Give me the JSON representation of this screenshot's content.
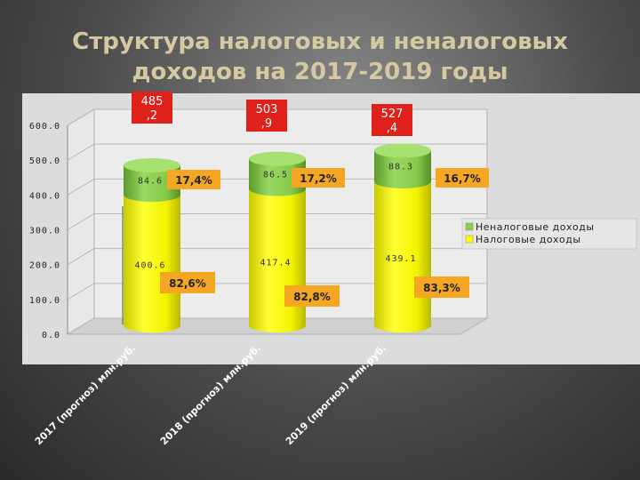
{
  "title": {
    "line1": "Структура налоговых и неналоговых",
    "line2": "доходов на 2017-2019 годы"
  },
  "chart_data": {
    "type": "bar",
    "stacked": true,
    "categories": [
      "2017 (прогноз) млн.руб.",
      "2018 (прогноз) млн.руб.",
      "2019 (прогноз) млн.руб."
    ],
    "series": [
      {
        "name": "Налоговые доходы",
        "values": [
          400.6,
          417.4,
          439.1
        ],
        "color": "#ffff00",
        "percent_labels": [
          "82,6%",
          "82,8%",
          "83,3%"
        ]
      },
      {
        "name": "Неналоговые доходы",
        "values": [
          84.6,
          86.5,
          88.3
        ],
        "color": "#8ccf4d",
        "percent_labels": [
          "17,4%",
          "17,2%",
          "16,7%"
        ]
      }
    ],
    "totals": [
      {
        "line1": "485",
        "line2": ",2"
      },
      {
        "line1": "503",
        "line2": ",9"
      },
      {
        "line1": "527",
        "line2": ",4"
      }
    ],
    "y_ticks": [
      "0.0",
      "100.0",
      "200.0",
      "300.0",
      "400.0",
      "500.0",
      "600.0"
    ],
    "ylim": [
      0,
      600
    ],
    "legend_position": "right",
    "total_box_color": "#e0201b",
    "percent_box_color": "#f5a623"
  }
}
